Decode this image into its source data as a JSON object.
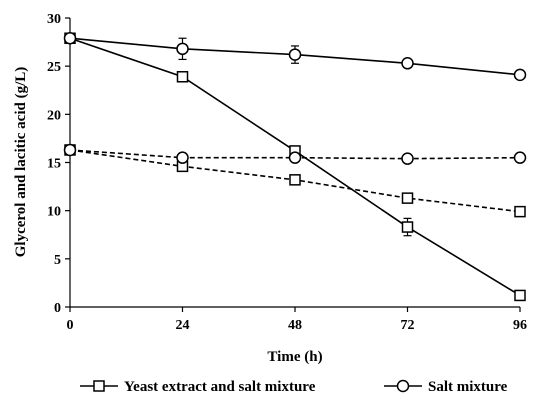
{
  "chart_data": {
    "type": "line",
    "title": "",
    "xlabel": "Time (h)",
    "ylabel": "Glycerol and lacitic acid (g/L)",
    "x": [
      0,
      24,
      48,
      72,
      96
    ],
    "xlim": [
      0,
      96
    ],
    "ylim": [
      0,
      30
    ],
    "xticks": [
      "0",
      "24",
      "48",
      "72",
      "96"
    ],
    "yticks": [
      "0",
      "5",
      "10",
      "15",
      "20",
      "25",
      "30"
    ],
    "grid": false,
    "legend_position": "bottom",
    "series": [
      {
        "name": "Yeast extract and salt mixture",
        "marker": "square",
        "group": "glycerol",
        "line_style": "solid",
        "values": [
          27.9,
          23.9,
          16.2,
          8.3,
          1.2
        ],
        "errors": [
          0.2,
          0.3,
          0.4,
          0.9,
          0.5
        ]
      },
      {
        "name": "Yeast extract and salt mixture",
        "marker": "square",
        "group": "lactic acid",
        "line_style": "dashed",
        "values": [
          16.3,
          14.6,
          13.2,
          11.3,
          9.9
        ],
        "errors": [
          0.2,
          0.3,
          0.3,
          0.3,
          0.3
        ]
      },
      {
        "name": "Salt mixture",
        "marker": "circle",
        "group": "glycerol",
        "line_style": "solid",
        "values": [
          27.9,
          26.8,
          26.2,
          25.3,
          24.1
        ],
        "errors": [
          0.2,
          1.1,
          0.9,
          0.3,
          0.2
        ]
      },
      {
        "name": "Salt mixture",
        "marker": "circle",
        "group": "lactic acid",
        "line_style": "dashed",
        "values": [
          16.3,
          15.5,
          15.5,
          15.4,
          15.5
        ],
        "errors": [
          0.2,
          0.2,
          0.2,
          0.2,
          0.2
        ]
      }
    ],
    "legend": [
      {
        "label": "Yeast extract and salt mixture",
        "marker": "square"
      },
      {
        "label": "Salt mixture",
        "marker": "circle"
      }
    ]
  }
}
